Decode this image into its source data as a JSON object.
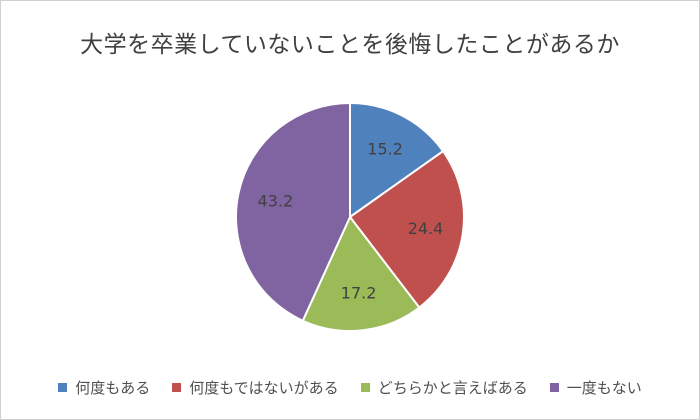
{
  "chart_data": {
    "type": "pie",
    "title": "大学を卒業していないことを後悔したことがあるか",
    "categories": [
      "何度もある",
      "何度もではないがある",
      "どちらかと言えばある",
      "一度もない"
    ],
    "values": [
      15.2,
      24.4,
      17.2,
      43.2
    ],
    "value_labels": [
      "15.2",
      "24.4",
      "17.2",
      "43.2"
    ],
    "colors": [
      "#4f81bd",
      "#c0504d",
      "#9bbb59",
      "#8064a2"
    ],
    "legend_position": "bottom",
    "start_angle": "12 o'clock",
    "direction": "clockwise"
  }
}
